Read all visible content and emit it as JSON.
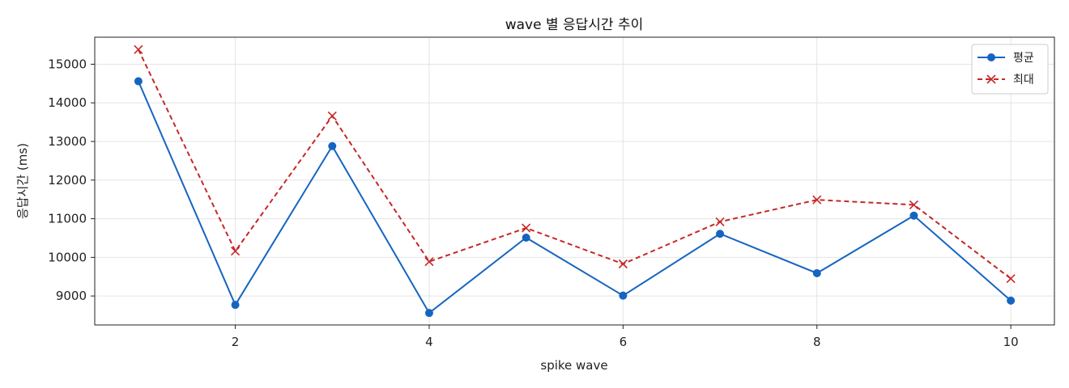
{
  "chart_data": {
    "type": "line",
    "title": "wave 별 응답시간 추이",
    "xlabel": "spike wave",
    "ylabel": "응답시간 (ms)",
    "x": [
      1,
      2,
      3,
      4,
      5,
      6,
      7,
      8,
      9,
      10
    ],
    "xticks": [
      2,
      4,
      6,
      8,
      10
    ],
    "yticks": [
      9000,
      10000,
      11000,
      12000,
      13000,
      14000,
      15000
    ],
    "xlim": [
      0.55,
      10.45
    ],
    "ylim": [
      8250,
      15700
    ],
    "grid": true,
    "legend_position": "top-right",
    "series": [
      {
        "name": "평균",
        "color": "#1565c0",
        "line_style": "solid",
        "marker": "circle",
        "values": [
          14560,
          8770,
          12880,
          8560,
          10510,
          9010,
          10610,
          9590,
          11080,
          8880
        ]
      },
      {
        "name": "최대",
        "color": "#c62828",
        "line_style": "dashed",
        "marker": "x",
        "values": [
          15380,
          10160,
          13660,
          9890,
          10760,
          9830,
          10920,
          11490,
          11360,
          9450
        ]
      }
    ]
  }
}
